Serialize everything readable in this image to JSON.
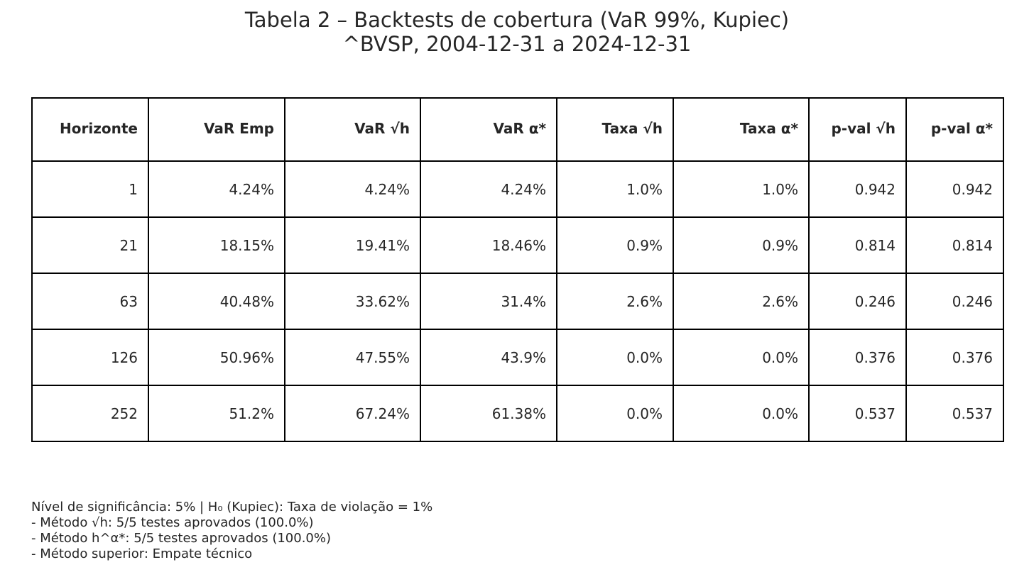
{
  "title": {
    "line1": "Tabela 2 – Backtests de cobertura (VaR 99%, Kupiec)",
    "line2": "^BVSP, 2004-12-31 a 2024-12-31"
  },
  "chart_data": {
    "type": "table",
    "columns": [
      "Horizonte",
      "VaR Emp",
      "VaR √h",
      "VaR α*",
      "Taxa √h",
      "Taxa α*",
      "p-val √h",
      "p-val α*"
    ],
    "rows": [
      [
        "1",
        "4.24%",
        "4.24%",
        "4.24%",
        "1.0%",
        "1.0%",
        "0.942",
        "0.942"
      ],
      [
        "21",
        "18.15%",
        "19.41%",
        "18.46%",
        "0.9%",
        "0.9%",
        "0.814",
        "0.814"
      ],
      [
        "63",
        "40.48%",
        "33.62%",
        "31.4%",
        "2.6%",
        "2.6%",
        "0.246",
        "0.246"
      ],
      [
        "126",
        "50.96%",
        "47.55%",
        "43.9%",
        "0.0%",
        "0.0%",
        "0.376",
        "0.376"
      ],
      [
        "252",
        "51.2%",
        "67.24%",
        "61.38%",
        "0.0%",
        "0.0%",
        "0.537",
        "0.537"
      ]
    ]
  },
  "notes": [
    "Nível de significância: 5% | H₀ (Kupiec): Taxa de violação = 1%",
    "- Método √h: 5/5 testes aprovados (100.0%)",
    "- Método h^α*: 5/5 testes aprovados (100.0%)",
    "- Método superior: Empate técnico"
  ]
}
